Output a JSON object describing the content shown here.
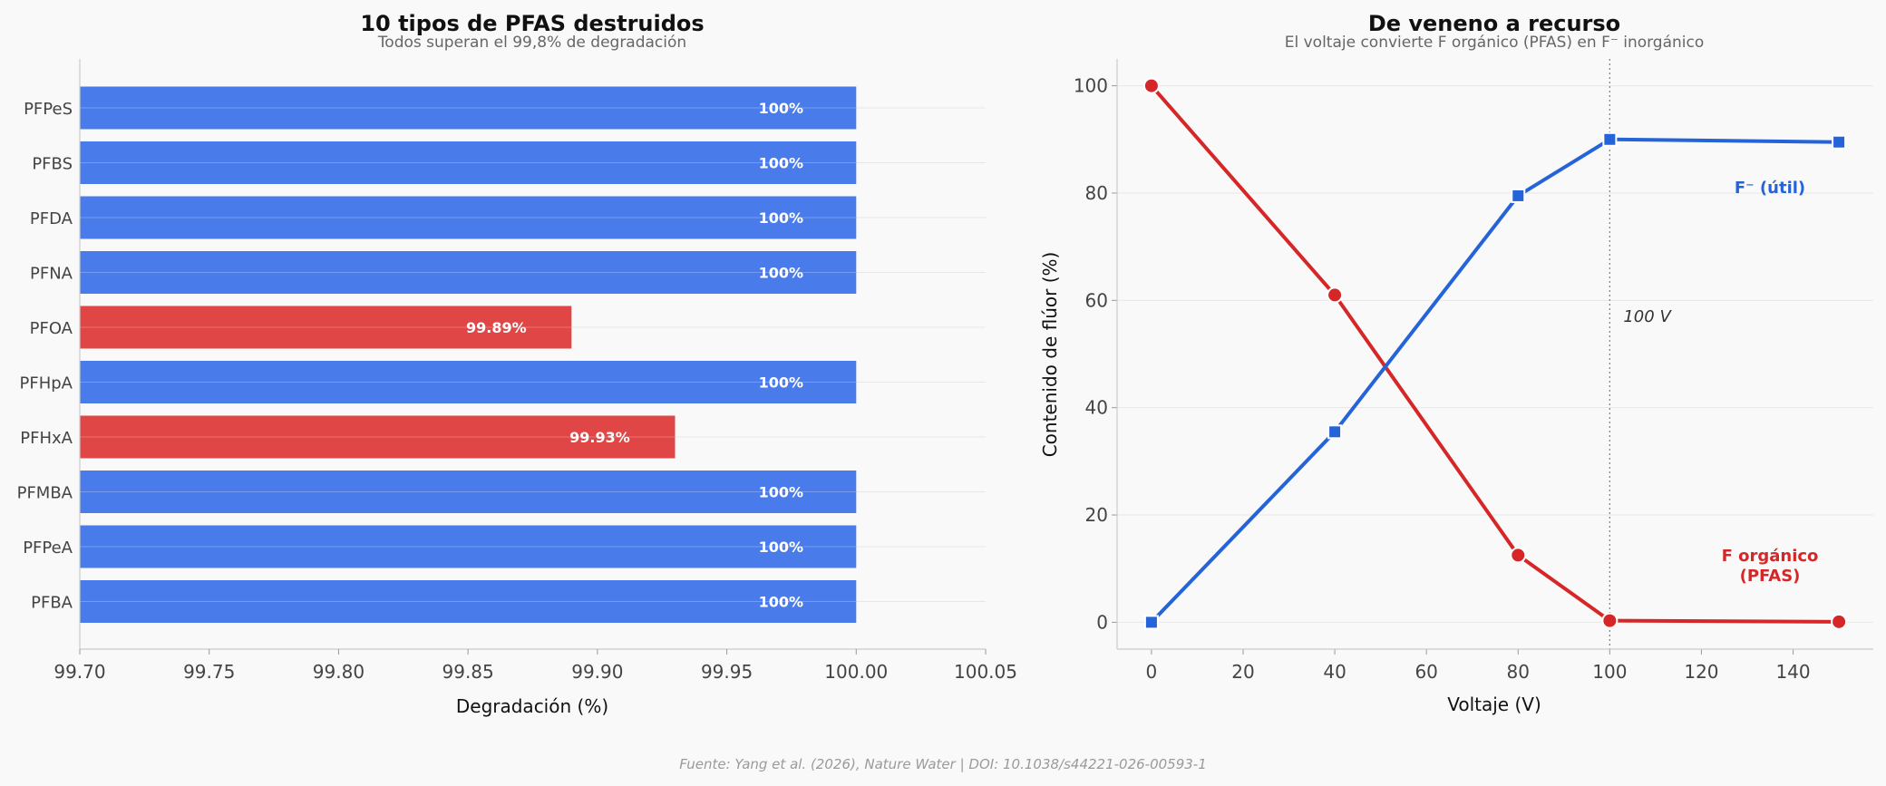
{
  "chart_data": [
    {
      "type": "bar",
      "orientation": "horizontal",
      "title": "10 tipos de PFAS destruidos",
      "subtitle": "Todos superan el 99,8% de degradación",
      "xlabel": "Degradación (%)",
      "ylabel": "",
      "xlim": [
        99.7,
        100.05
      ],
      "xticks": [
        "99.70",
        "99.75",
        "99.80",
        "99.85",
        "99.90",
        "99.95",
        "100.00",
        "100.05"
      ],
      "xtick_values": [
        99.7,
        99.75,
        99.8,
        99.85,
        99.9,
        99.95,
        100.0,
        100.05
      ],
      "categories": [
        "PFPeS",
        "PFBS",
        "PFDA",
        "PFNA",
        "PFOA",
        "PFHpA",
        "PFHxA",
        "PFMBA",
        "PFPeA",
        "PFBA"
      ],
      "values": [
        100,
        100,
        100,
        100,
        99.89,
        100,
        99.93,
        100,
        100,
        100
      ],
      "labels": [
        "100%",
        "100%",
        "100%",
        "100%",
        "99.89%",
        "100%",
        "99.93%",
        "100%",
        "100%",
        "100%"
      ],
      "colors": [
        "#4a7bea",
        "#4a7bea",
        "#4a7bea",
        "#4a7bea",
        "#e04646",
        "#4a7bea",
        "#e04646",
        "#4a7bea",
        "#4a7bea",
        "#4a7bea"
      ],
      "grid": "x-minor"
    },
    {
      "type": "line",
      "title": "De veneno a recurso",
      "subtitle": "El voltaje convierte F orgánico (PFAS) en F⁻ inorgánico",
      "xlabel": "Voltaje (V)",
      "ylabel": "Contenido de flúor (%)",
      "xlim": [
        -7.5,
        157.5
      ],
      "ylim": [
        -5,
        105
      ],
      "xticks": [
        "0",
        "20",
        "40",
        "60",
        "80",
        "100",
        "120",
        "140"
      ],
      "xtick_values": [
        0,
        20,
        40,
        60,
        80,
        100,
        120,
        140
      ],
      "yticks": [
        "0",
        "20",
        "40",
        "60",
        "80",
        "100"
      ],
      "ytick_values": [
        0,
        20,
        40,
        60,
        80,
        100
      ],
      "x": [
        0,
        40,
        80,
        100,
        150
      ],
      "series": [
        {
          "name": "F orgánico (PFAS)",
          "label_line1": "F orgánico",
          "label_line2": "(PFAS)",
          "values": [
            100,
            61,
            12.5,
            0.3,
            0.1
          ],
          "color": "#d62728",
          "marker": "circle"
        },
        {
          "name": "F⁻ (útil)",
          "label_line1": "F⁻ (útil)",
          "values": [
            0,
            35.5,
            79.5,
            90,
            89.5
          ],
          "color": "#2563d9",
          "marker": "square"
        }
      ],
      "vline": {
        "x": 100,
        "label": "100 V"
      },
      "grid": "y"
    }
  ],
  "footer": "Fuente: Yang et al. (2026), Nature Water | DOI: 10.1038/s44221-026-00593-1"
}
